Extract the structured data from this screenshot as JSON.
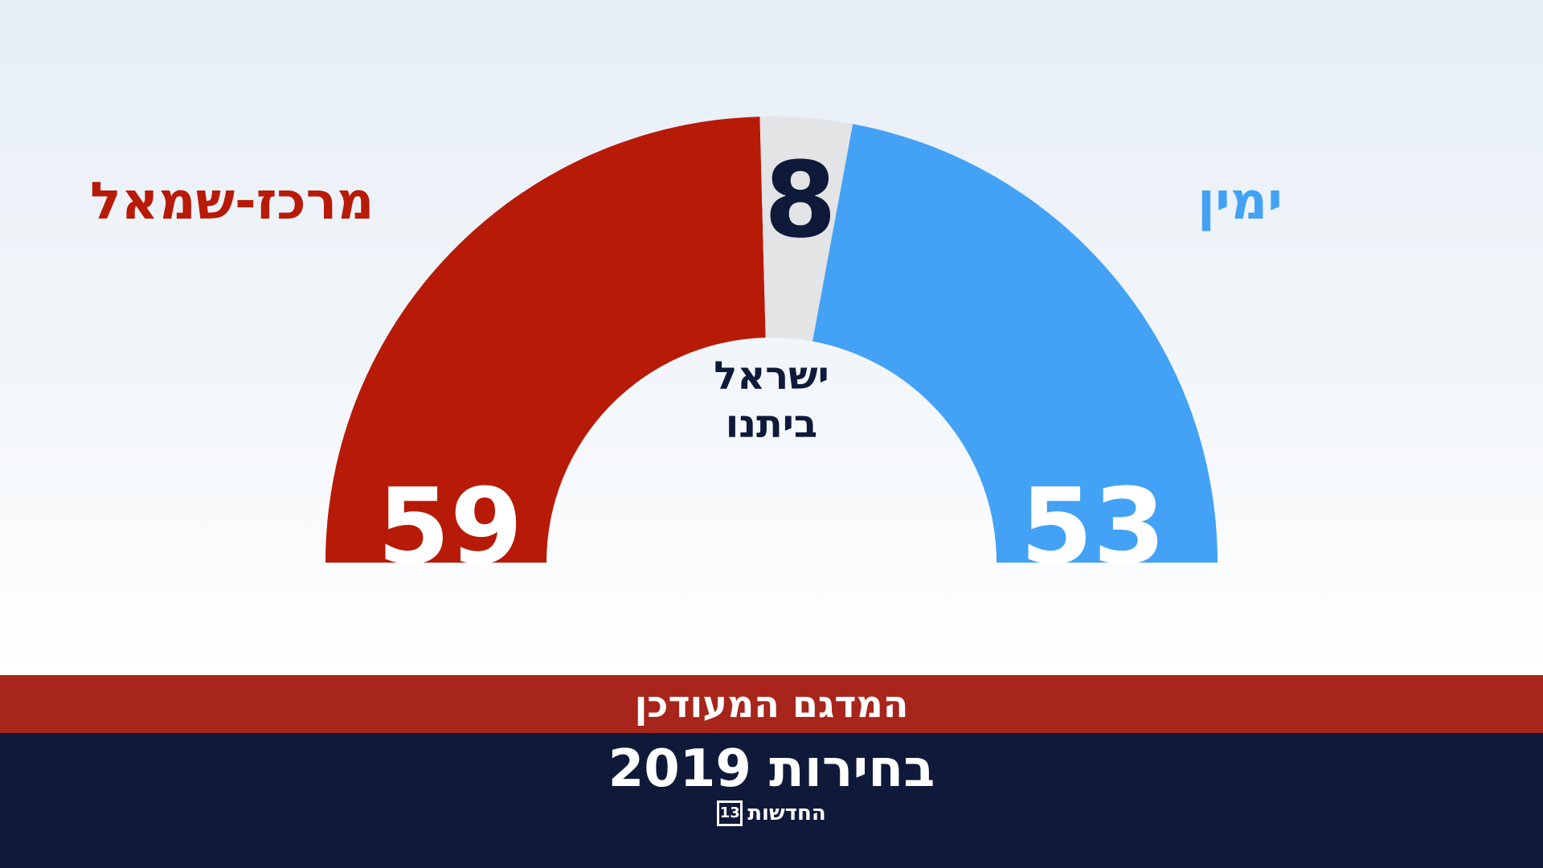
{
  "chart_data": {
    "type": "pie",
    "layout": "semicircle",
    "segments": [
      {
        "label": "מרכז-שמאל",
        "value": 59,
        "color": "#b81a08"
      },
      {
        "label": "ישראל ביתנו",
        "value": 8,
        "color": "#e3e4e6"
      },
      {
        "label": "ימין",
        "value": 53,
        "color": "#43a2f5"
      }
    ],
    "total": 120
  },
  "labels": {
    "left_bloc": "מרכז-שמאל",
    "right_bloc": "ימין",
    "center_line1": "ישראל",
    "center_line2": "ביתנו"
  },
  "banner": {
    "subtitle": "המדגם המעודכן",
    "title": "בחירות 2019",
    "brand": "החדשות",
    "brand_logo": "13"
  },
  "colors": {
    "left_bloc": "#b81a08",
    "right_bloc": "#43a2f5",
    "neutral": "#e3e4e6",
    "value_dark": "#0f1a3a",
    "banner_red": "#a8251c",
    "banner_navy": "#0f1a3a"
  }
}
